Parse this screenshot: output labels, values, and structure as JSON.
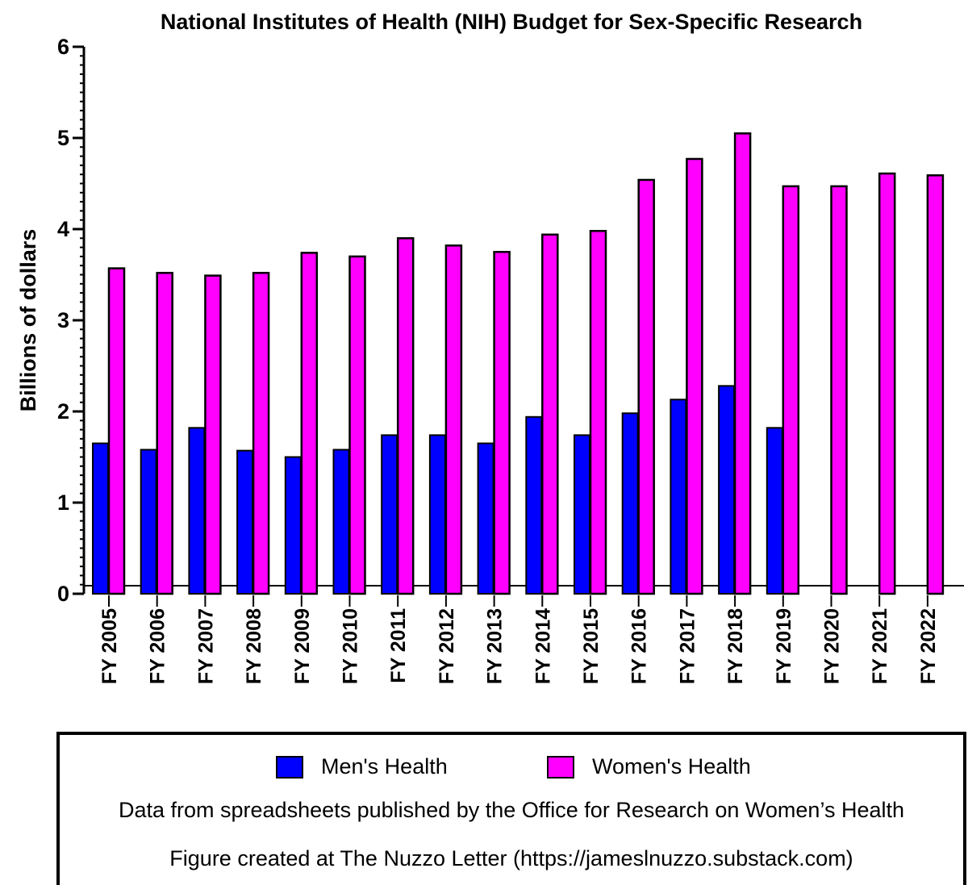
{
  "chart_data": {
    "type": "bar",
    "title": "National Institutes of Health (NIH) Budget for Sex-Specific Research",
    "ylabel": "Billions of dollars",
    "xlabel": "",
    "ylim": [
      0,
      6
    ],
    "yticks": [
      "0",
      "1",
      "2",
      "3",
      "4",
      "5",
      "6"
    ],
    "categories": [
      "FY 2005",
      "FY 2006",
      "FY 2007",
      "FY 2008",
      "FY 2009",
      "FY 2010",
      "FY 2011",
      "FY 2012",
      "FY 2013",
      "FY 2014",
      "FY 2015",
      "FY 2016",
      "FY 2017",
      "FY 2018",
      "FY 2019",
      "FY 2020",
      "FY 2021",
      "FY 2022"
    ],
    "series": [
      {
        "name": "Men's Health",
        "color": "#0000ff",
        "values": [
          1.65,
          1.58,
          1.82,
          1.57,
          1.5,
          1.58,
          1.74,
          1.74,
          1.65,
          1.94,
          1.74,
          1.98,
          2.13,
          2.28,
          1.82,
          null,
          null,
          null
        ]
      },
      {
        "name": "Women's Health",
        "color": "#ff00ff",
        "values": [
          3.57,
          3.52,
          3.49,
          3.52,
          3.74,
          3.7,
          3.9,
          3.82,
          3.75,
          3.94,
          3.98,
          4.54,
          4.77,
          5.05,
          4.47,
          4.47,
          4.61,
          4.59
        ]
      }
    ]
  },
  "legend": {
    "men_label": "Men's Health",
    "women_label": "Women's Health",
    "source_note": "Data from spreadsheets published by the Office for Research on Women’s Health",
    "credit_note": "Figure created at The Nuzzo Letter (https://jameslnuzzo.substack.com)"
  }
}
